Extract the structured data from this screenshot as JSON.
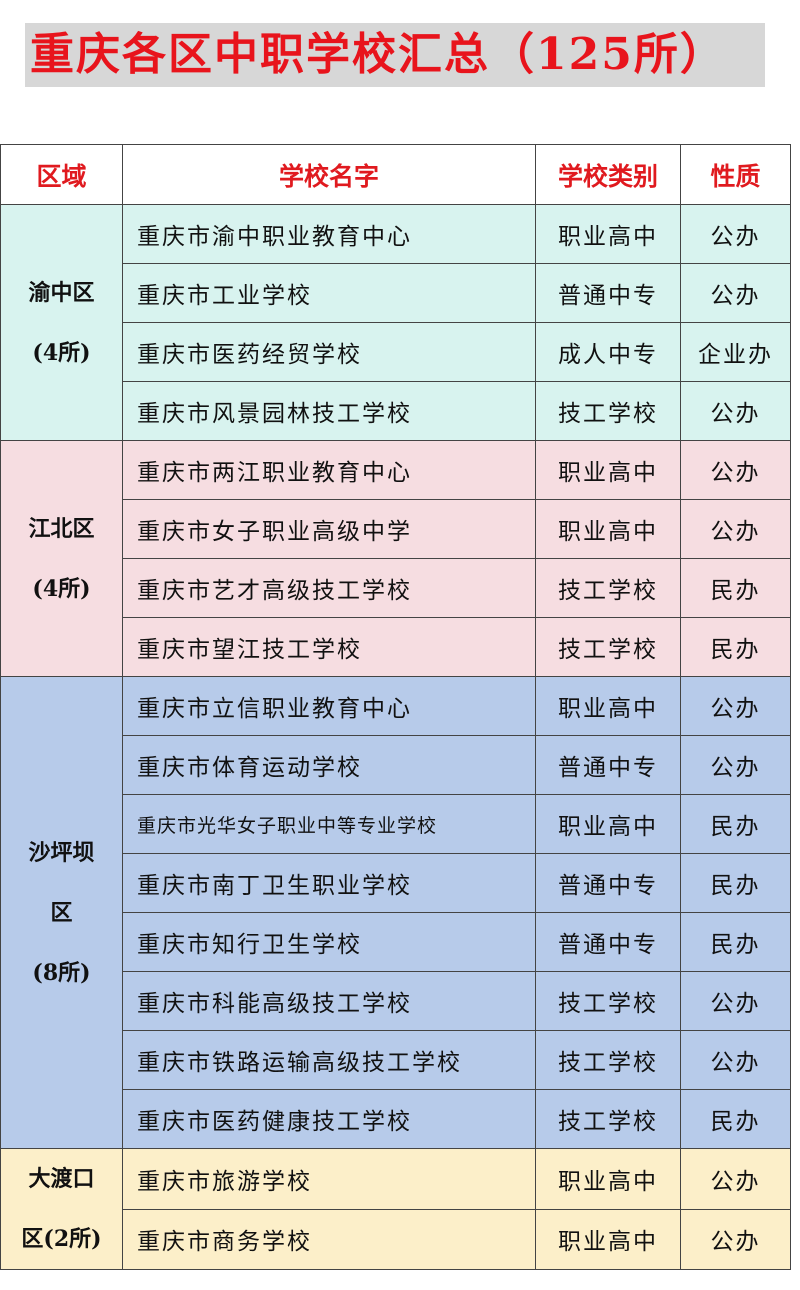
{
  "title": "重庆各区中职学校汇总（125所）",
  "colors": {
    "title_red": "#e8141c",
    "header_red": "#e01a1f",
    "渝中区": "#d8f3ef",
    "江北区": "#f6dde1",
    "沙坪坝区": "#b7cbea",
    "大渡口区": "#fcefc9"
  },
  "headers": {
    "region": "区域",
    "name": "学校名字",
    "type": "学校类别",
    "nature": "性质"
  },
  "groups": [
    {
      "region_lines": [
        "渝中区",
        "(4所)"
      ],
      "color": "#d8f3ef",
      "schools": [
        {
          "name": "重庆市渝中职业教育中心",
          "type": "职业高中",
          "nature": "公办"
        },
        {
          "name": "重庆市工业学校",
          "type": "普通中专",
          "nature": "公办"
        },
        {
          "name": "重庆市医药经贸学校",
          "type": "成人中专",
          "nature": "企业办"
        },
        {
          "name": "重庆市风景园林技工学校",
          "type": "技工学校",
          "nature": "公办"
        }
      ]
    },
    {
      "region_lines": [
        "江北区",
        "(4所)"
      ],
      "color": "#f6dde1",
      "schools": [
        {
          "name": "重庆市两江职业教育中心",
          "type": "职业高中",
          "nature": "公办"
        },
        {
          "name": "重庆市女子职业高级中学",
          "type": "职业高中",
          "nature": "公办"
        },
        {
          "name": "重庆市艺才高级技工学校",
          "type": "技工学校",
          "nature": "民办"
        },
        {
          "name": "重庆市望江技工学校",
          "type": "技工学校",
          "nature": "民办"
        }
      ]
    },
    {
      "region_lines": [
        "沙坪坝",
        "区",
        "(8所)"
      ],
      "color": "#b7cbea",
      "schools": [
        {
          "name": "重庆市立信职业教育中心",
          "type": "职业高中",
          "nature": "公办"
        },
        {
          "name": "重庆市体育运动学校",
          "type": "普通中专",
          "nature": "公办"
        },
        {
          "name": "重庆市光华女子职业中等专业学校",
          "type": "职业高中",
          "nature": "民办"
        },
        {
          "name": "重庆市南丁卫生职业学校",
          "type": "普通中专",
          "nature": "民办"
        },
        {
          "name": "重庆市知行卫生学校",
          "type": "普通中专",
          "nature": "民办"
        },
        {
          "name": "重庆市科能高级技工学校",
          "type": "技工学校",
          "nature": "公办"
        },
        {
          "name": "重庆市铁路运输高级技工学校",
          "type": "技工学校",
          "nature": "公办"
        },
        {
          "name": "重庆市医药健康技工学校",
          "type": "技工学校",
          "nature": "民办"
        }
      ]
    },
    {
      "region_lines": [
        "大渡口",
        "区(2所)"
      ],
      "color": "#fcefc9",
      "schools": [
        {
          "name": "重庆市旅游学校",
          "type": "职业高中",
          "nature": "公办"
        },
        {
          "name": "重庆市商务学校",
          "type": "职业高中",
          "nature": "公办"
        }
      ]
    }
  ]
}
